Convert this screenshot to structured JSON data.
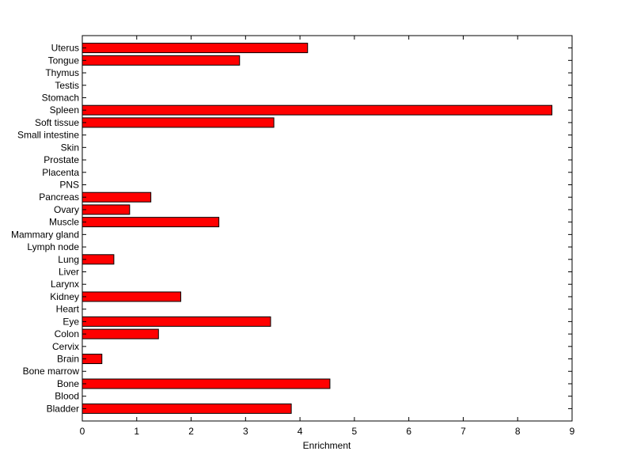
{
  "chart_data": {
    "type": "bar",
    "orientation": "horizontal",
    "categories": [
      "Uterus",
      "Tongue",
      "Thymus",
      "Testis",
      "Stomach",
      "Spleen",
      "Soft tissue",
      "Small intestine",
      "Skin",
      "Prostate",
      "Placenta",
      "PNS",
      "Pancreas",
      "Ovary",
      "Muscle",
      "Mammary gland",
      "Lymph node",
      "Lung",
      "Liver",
      "Larynx",
      "Kidney",
      "Heart",
      "Eye",
      "Colon",
      "Cervix",
      "Brain",
      "Bone marrow",
      "Bone",
      "Blood",
      "Bladder"
    ],
    "values": [
      4.14,
      2.89,
      0,
      0,
      0,
      8.63,
      3.52,
      0,
      0,
      0,
      0,
      0,
      1.26,
      0.87,
      2.51,
      0,
      0,
      0.58,
      0,
      0,
      1.81,
      0,
      3.46,
      1.4,
      0,
      0.36,
      0,
      4.55,
      0,
      3.84
    ],
    "xlabel": "Enrichment",
    "ylabel": "",
    "title": "",
    "xlim": [
      0,
      9
    ],
    "xticks": [
      "0",
      "1",
      "2",
      "3",
      "4",
      "5",
      "6",
      "7",
      "8",
      "9"
    ],
    "grid": false,
    "bar_color": "#ff0000",
    "bar_edge_color": "#000000"
  }
}
